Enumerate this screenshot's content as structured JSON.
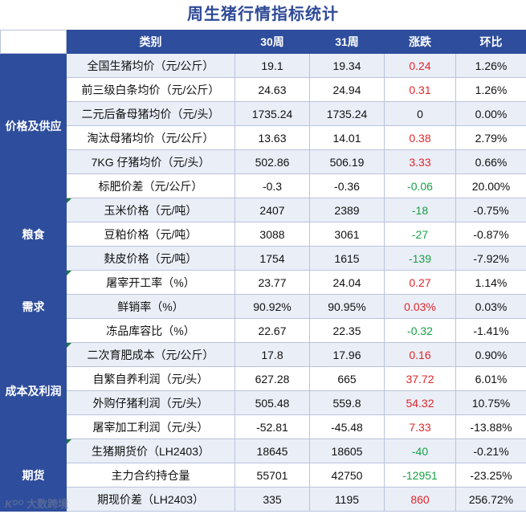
{
  "title": "周生猪行情指标统计",
  "headers": [
    "类别",
    "30周",
    "31周",
    "涨跌",
    "环比"
  ],
  "groups": [
    {
      "name": "价格及供应",
      "rows": [
        {
          "item": "全国生猪均价（元/公斤）",
          "w30": "19.1",
          "w31": "19.34",
          "change": "0.24",
          "dir": "up",
          "ratio": "1.26%"
        },
        {
          "item": "前三级白条均价（元/公斤）",
          "w30": "24.63",
          "w31": "24.94",
          "change": "0.31",
          "dir": "up",
          "ratio": "1.26%"
        },
        {
          "item": "二元后备母猪均价（元/头）",
          "w30": "1735.24",
          "w31": "1735.24",
          "change": "0",
          "dir": "flat",
          "ratio": "0.00%"
        },
        {
          "item": "淘汰母猪均价（元/公斤）",
          "w30": "13.63",
          "w31": "14.01",
          "change": "0.38",
          "dir": "up",
          "ratio": "2.79%"
        },
        {
          "item": "7KG 仔猪均价（元/头）",
          "w30": "502.86",
          "w31": "506.19",
          "change": "3.33",
          "dir": "up",
          "ratio": "0.66%"
        },
        {
          "item": "标肥价差（元/公斤）",
          "w30": "-0.3",
          "w31": "-0.36",
          "change": "-0.06",
          "dir": "down",
          "ratio": "20.00%"
        }
      ]
    },
    {
      "name": "粮食",
      "rows": [
        {
          "item": "玉米价格（元/吨）",
          "w30": "2407",
          "w31": "2389",
          "change": "-18",
          "dir": "down",
          "ratio": "-0.75%"
        },
        {
          "item": "豆粕价格（元/吨）",
          "w30": "3088",
          "w31": "3061",
          "change": "-27",
          "dir": "down",
          "ratio": "-0.87%"
        },
        {
          "item": "麸皮价格（元/吨）",
          "w30": "1754",
          "w31": "1615",
          "change": "-139",
          "dir": "down",
          "ratio": "-7.92%"
        }
      ]
    },
    {
      "name": "需求",
      "rows": [
        {
          "item": "屠宰开工率（%）",
          "w30": "23.77",
          "w31": "24.04",
          "change": "0.27",
          "dir": "up",
          "ratio": "1.14%"
        },
        {
          "item": "鲜销率（%）",
          "w30": "90.92%",
          "w31": "90.95%",
          "change": "0.03%",
          "dir": "up",
          "ratio": "0.03%"
        },
        {
          "item": "冻品库容比（%）",
          "w30": "22.67",
          "w31": "22.35",
          "change": "-0.32",
          "dir": "down",
          "ratio": "-1.41%"
        }
      ]
    },
    {
      "name": "成本及利润",
      "rows": [
        {
          "item": "二次育肥成本（元/公斤）",
          "w30": "17.8",
          "w31": "17.96",
          "change": "0.16",
          "dir": "up",
          "ratio": "0.90%"
        },
        {
          "item": "自繁自养利润（元/头）",
          "w30": "627.28",
          "w31": "665",
          "change": "37.72",
          "dir": "up",
          "ratio": "6.01%"
        },
        {
          "item": "外购仔猪利润（元/头）",
          "w30": "505.48",
          "w31": "559.8",
          "change": "54.32",
          "dir": "up",
          "ratio": "10.75%"
        },
        {
          "item": "屠宰加工利润（元/头）",
          "w30": "-52.81",
          "w31": "-45.48",
          "change": "7.33",
          "dir": "up",
          "ratio": "-13.88%"
        }
      ]
    },
    {
      "name": "期货",
      "rows": [
        {
          "item": "生猪期货价（LH2403）",
          "w30": "18645",
          "w31": "18605",
          "change": "-40",
          "dir": "down",
          "ratio": "-0.21%"
        },
        {
          "item": "主力合约持仓量",
          "w30": "55701",
          "w31": "42750",
          "change": "-12951",
          "dir": "down",
          "ratio": "-23.25%"
        },
        {
          "item": "期现价差（LH2403）",
          "w30": "335",
          "w31": "1195",
          "change": "860",
          "dir": "up",
          "ratio": "256.72%"
        }
      ]
    }
  ],
  "watermark": {
    "logo": "Kᴰᴼ",
    "text": "大数跨境"
  },
  "colors": {
    "header_bg": "#2e4d9c",
    "up": "#e0262b",
    "down": "#18a045",
    "stripe": "#eaeef7"
  }
}
